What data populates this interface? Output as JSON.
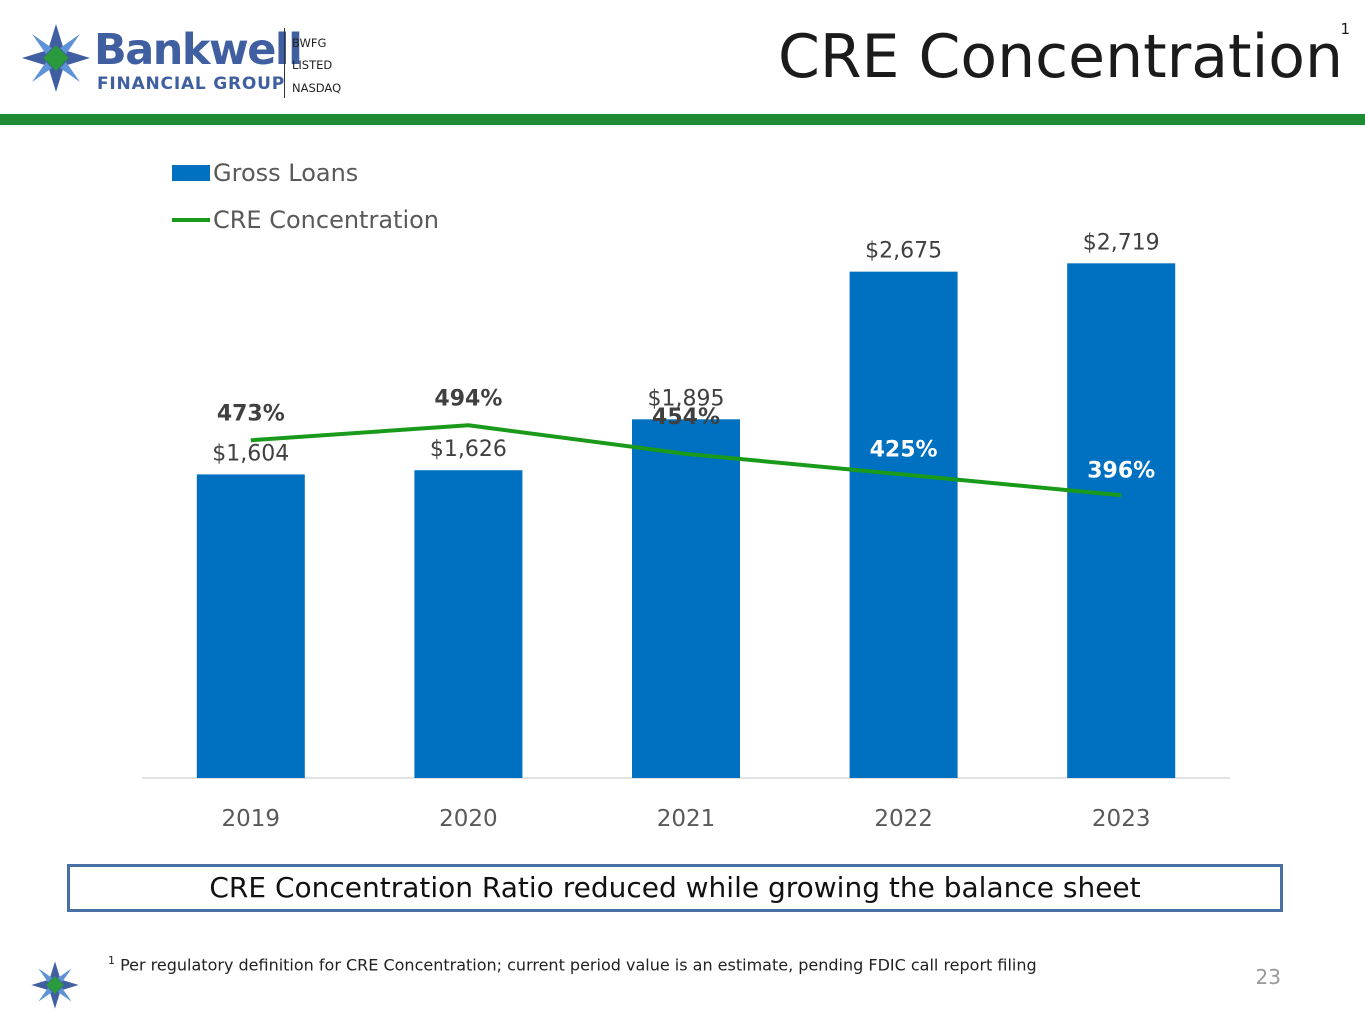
{
  "header": {
    "brand_name": "Bankwell",
    "brand_sub": "FINANCIAL GROUP",
    "ticker": "BWFG",
    "listed": "LISTED",
    "exchange": "NASDAQ",
    "title": "CRE Concentration",
    "title_sup": "1"
  },
  "colors": {
    "bar": "#0070c0",
    "line": "#1a9a1a",
    "band": "#1e8a34",
    "brand": "#3f5fa0"
  },
  "chart_data": {
    "type": "bar",
    "categories": [
      "2019",
      "2020",
      "2021",
      "2022",
      "2023"
    ],
    "series": [
      {
        "name": "Gross Loans",
        "kind": "bar",
        "values": [
          1604,
          1626,
          1895,
          2675,
          2719
        ],
        "labels": [
          "$1,604",
          "$1,626",
          "$1,895",
          "$2,675",
          "$2,719"
        ]
      },
      {
        "name": "CRE Concentration",
        "kind": "line",
        "values": [
          473,
          494,
          454,
          425,
          396
        ],
        "labels": [
          "473%",
          "494%",
          "454%",
          "425%",
          "396%"
        ]
      }
    ],
    "legend": [
      "Gross Loans",
      "CRE Concentration"
    ],
    "legend_position": "top-left",
    "ylim_bar": [
      0,
      2800
    ],
    "ylim_line": [
      0,
      1000
    ],
    "grid": false
  },
  "callout": "CRE Concentration Ratio reduced while growing the balance sheet",
  "footnote": {
    "marker": "1",
    "text": "Per regulatory definition for CRE Concentration; current period value is an estimate, pending FDIC call report filing"
  },
  "page_number": "23"
}
